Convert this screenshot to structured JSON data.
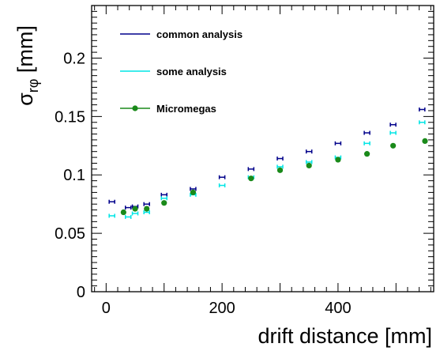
{
  "chart_data": {
    "type": "scatter",
    "xlabel": "drift distance [mm]",
    "ylabel": "σ",
    "ylabel_sub": "rφ",
    "ylabel_unit": " [mm]",
    "xlim": [
      -25,
      565
    ],
    "ylim": [
      0,
      0.245
    ],
    "x_ticks": [
      0,
      200,
      400
    ],
    "x_tick_labels": [
      "0",
      "200",
      "400"
    ],
    "y_ticks": [
      0,
      0.05,
      0.1,
      0.15,
      0.2
    ],
    "y_tick_labels": [
      "0",
      "0.05",
      "0.1",
      "0.15",
      "0.2"
    ],
    "grid": false,
    "legend_position": "top-left",
    "series": [
      {
        "name": "common analysis",
        "color": "#00008b",
        "marker": "error-bar",
        "points": [
          [
            10,
            0.077
          ],
          [
            38,
            0.072
          ],
          [
            50,
            0.073
          ],
          [
            70,
            0.075
          ],
          [
            100,
            0.083
          ],
          [
            150,
            0.088
          ],
          [
            200,
            0.098
          ],
          [
            250,
            0.105
          ],
          [
            300,
            0.114
          ],
          [
            350,
            0.12
          ],
          [
            400,
            0.127
          ],
          [
            450,
            0.136
          ],
          [
            495,
            0.143
          ],
          [
            545,
            0.156
          ]
        ]
      },
      {
        "name": "some analysis",
        "color": "#00e5e5",
        "marker": "error-bar",
        "points": [
          [
            10,
            0.065
          ],
          [
            38,
            0.064
          ],
          [
            50,
            0.067
          ],
          [
            70,
            0.068
          ],
          [
            100,
            0.08
          ],
          [
            150,
            0.083
          ],
          [
            200,
            0.091
          ],
          [
            250,
            0.098
          ],
          [
            300,
            0.107
          ],
          [
            350,
            0.111
          ],
          [
            400,
            0.115
          ],
          [
            450,
            0.127
          ],
          [
            495,
            0.136
          ],
          [
            545,
            0.145
          ]
        ]
      },
      {
        "name": "Micromegas",
        "color": "#1a8a1a",
        "marker": "circle",
        "points": [
          [
            30,
            0.068
          ],
          [
            50,
            0.071
          ],
          [
            70,
            0.071
          ],
          [
            100,
            0.076
          ],
          [
            150,
            0.085
          ],
          [
            250,
            0.097
          ],
          [
            300,
            0.104
          ],
          [
            350,
            0.108
          ],
          [
            400,
            0.113
          ],
          [
            450,
            0.118
          ],
          [
            495,
            0.125
          ],
          [
            550,
            0.129
          ]
        ]
      }
    ]
  }
}
